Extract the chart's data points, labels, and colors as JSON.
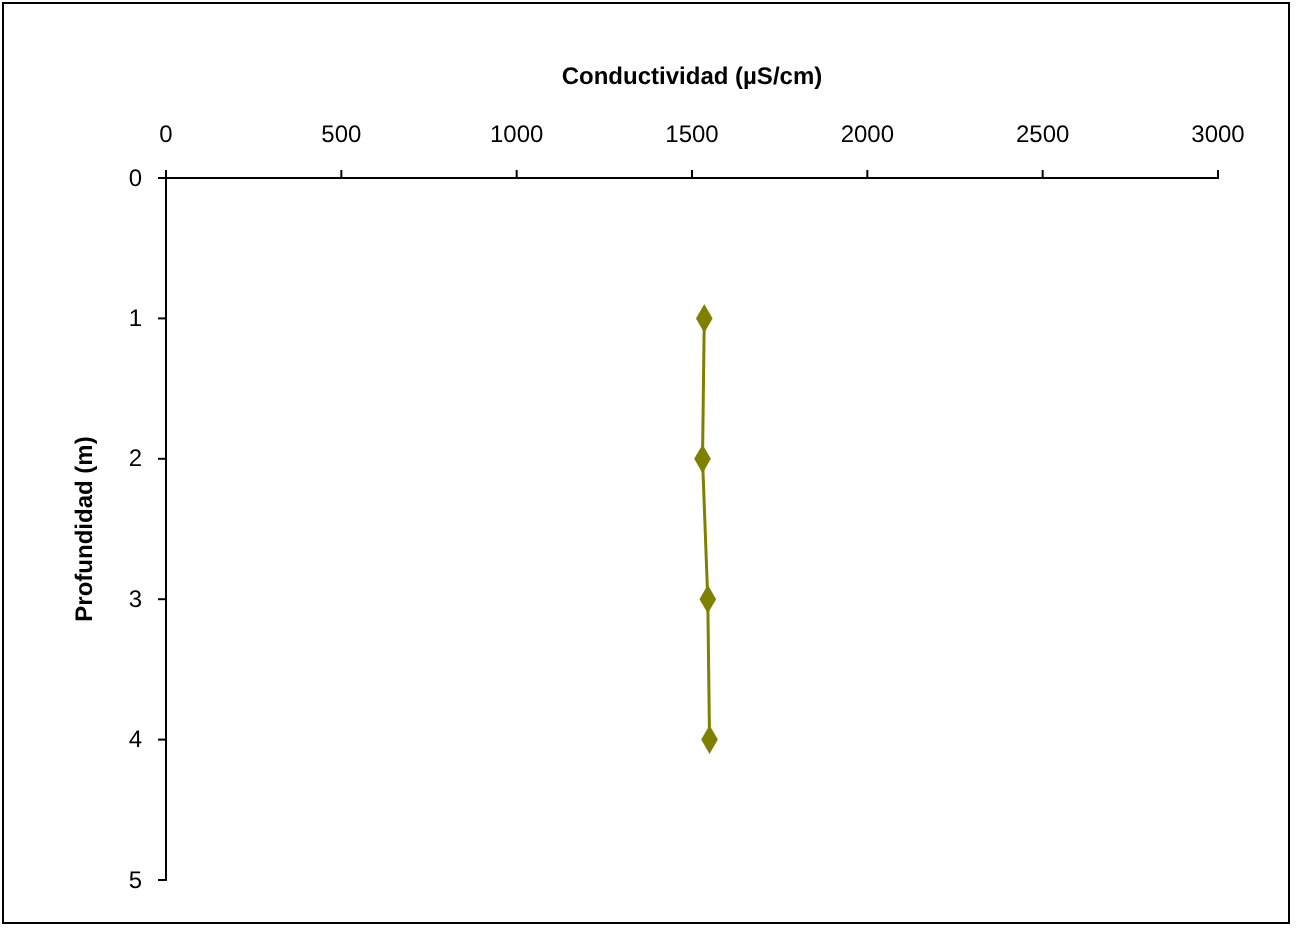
{
  "chart_data": {
    "type": "line",
    "xlabel": "Conductividad (µS/cm)",
    "ylabel": "Profundidad (m)",
    "xlim": [
      0,
      3000
    ],
    "xticks": [
      0,
      500,
      1000,
      1500,
      2000,
      2500,
      3000
    ],
    "ylim": [
      5,
      0
    ],
    "yticks": [
      0,
      1,
      2,
      3,
      4,
      5
    ],
    "x": [
      1535,
      1530,
      1545,
      1550
    ],
    "series": [
      {
        "values": [
          1,
          2,
          3,
          4
        ],
        "color": "#808000"
      }
    ],
    "marker": "diamond",
    "grid": false
  }
}
